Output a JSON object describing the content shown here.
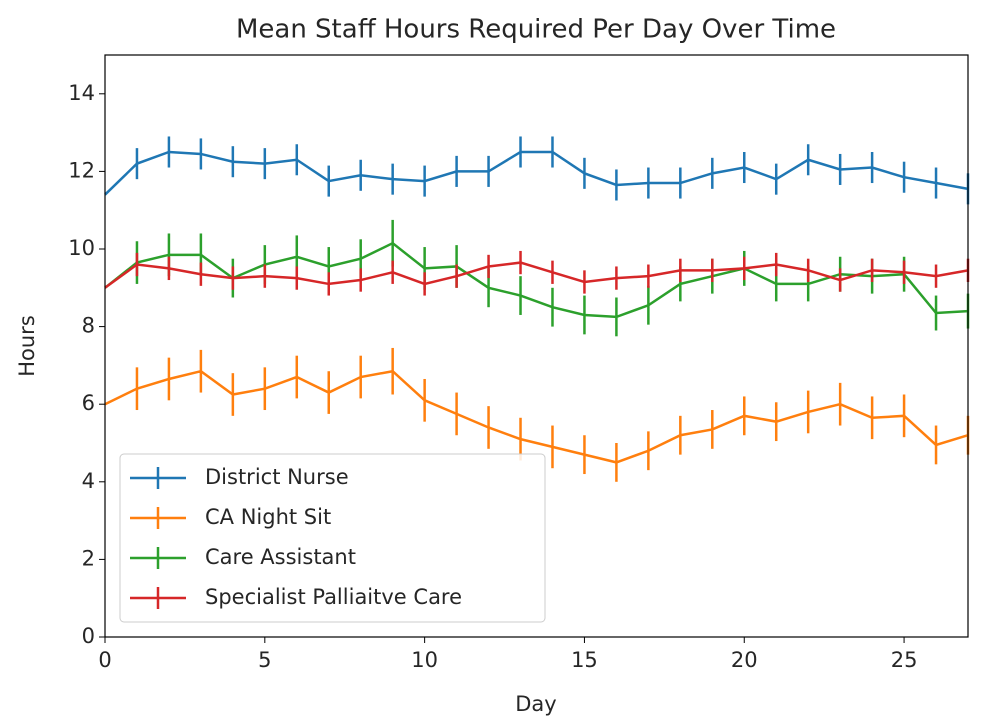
{
  "chart_data": {
    "type": "line",
    "title": "Mean Staff Hours Required Per Day Over Time",
    "x_label": "Day",
    "y_label": "Hours",
    "x": [
      0,
      1,
      2,
      3,
      4,
      5,
      6,
      7,
      8,
      9,
      10,
      11,
      12,
      13,
      14,
      15,
      16,
      17,
      18,
      19,
      20,
      21,
      22,
      23,
      24,
      25,
      26,
      27
    ],
    "xlim": [
      0,
      27
    ],
    "xticks": [
      0,
      5,
      10,
      15,
      20,
      25
    ],
    "ylim": [
      0,
      15
    ],
    "yticks": [
      0,
      2,
      4,
      6,
      8,
      10,
      12,
      14
    ],
    "legend": "lower left",
    "series": [
      {
        "name": "District Nurse",
        "color": "#1f77b4",
        "values": [
          11.4,
          12.2,
          12.5,
          12.45,
          12.25,
          12.2,
          12.3,
          11.75,
          11.9,
          11.8,
          11.75,
          12.0,
          12.0,
          12.5,
          12.5,
          11.95,
          11.65,
          11.7,
          11.7,
          11.95,
          12.1,
          11.8,
          12.3,
          12.05,
          12.1,
          11.85,
          11.7,
          11.55
        ],
        "errors": [
          0,
          0.4,
          0.4,
          0.4,
          0.4,
          0.4,
          0.4,
          0.4,
          0.4,
          0.4,
          0.4,
          0.4,
          0.4,
          0.4,
          0.4,
          0.4,
          0.4,
          0.4,
          0.4,
          0.4,
          0.4,
          0.4,
          0.4,
          0.4,
          0.4,
          0.4,
          0.4,
          0.4
        ]
      },
      {
        "name": "CA Night Sit",
        "color": "#ff7f0e",
        "values": [
          6.0,
          6.4,
          6.65,
          6.85,
          6.25,
          6.4,
          6.7,
          6.3,
          6.7,
          6.85,
          6.1,
          5.75,
          5.4,
          5.1,
          4.9,
          4.7,
          4.5,
          4.8,
          5.2,
          5.35,
          5.7,
          5.55,
          5.8,
          6.0,
          5.65,
          5.7,
          4.95,
          5.2
        ],
        "errors": [
          0,
          0.55,
          0.55,
          0.55,
          0.55,
          0.55,
          0.55,
          0.55,
          0.55,
          0.6,
          0.55,
          0.55,
          0.55,
          0.55,
          0.55,
          0.5,
          0.5,
          0.5,
          0.5,
          0.5,
          0.5,
          0.5,
          0.55,
          0.55,
          0.55,
          0.55,
          0.5,
          0.5
        ]
      },
      {
        "name": "Care Assistant",
        "color": "#2ca02c",
        "values": [
          9.0,
          9.65,
          9.85,
          9.85,
          9.25,
          9.6,
          9.8,
          9.55,
          9.75,
          10.15,
          9.5,
          9.55,
          9.0,
          8.8,
          8.5,
          8.3,
          8.25,
          8.55,
          9.1,
          9.3,
          9.5,
          9.1,
          9.1,
          9.35,
          9.3,
          9.35,
          8.35,
          8.4
        ],
        "errors": [
          0,
          0.55,
          0.55,
          0.55,
          0.5,
          0.5,
          0.55,
          0.5,
          0.5,
          0.6,
          0.55,
          0.55,
          0.5,
          0.5,
          0.5,
          0.5,
          0.5,
          0.5,
          0.45,
          0.45,
          0.45,
          0.45,
          0.45,
          0.45,
          0.45,
          0.45,
          0.45,
          0.45
        ]
      },
      {
        "name": "Specialist Palliaitve Care",
        "color": "#d62728",
        "values": [
          9.0,
          9.6,
          9.5,
          9.35,
          9.25,
          9.3,
          9.25,
          9.1,
          9.2,
          9.4,
          9.1,
          9.3,
          9.55,
          9.65,
          9.4,
          9.15,
          9.25,
          9.3,
          9.45,
          9.45,
          9.5,
          9.6,
          9.45,
          9.2,
          9.45,
          9.4,
          9.3,
          9.45
        ],
        "errors": [
          0,
          0.3,
          0.3,
          0.3,
          0.3,
          0.3,
          0.3,
          0.3,
          0.3,
          0.3,
          0.3,
          0.3,
          0.3,
          0.3,
          0.3,
          0.3,
          0.3,
          0.3,
          0.3,
          0.3,
          0.3,
          0.3,
          0.3,
          0.3,
          0.3,
          0.3,
          0.3,
          0.3
        ]
      }
    ]
  }
}
